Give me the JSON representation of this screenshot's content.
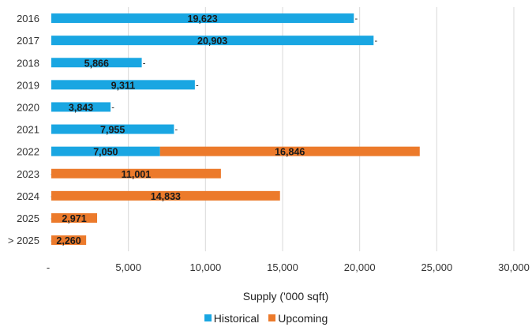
{
  "chart_data": {
    "type": "bar",
    "orientation": "horizontal",
    "stacked": true,
    "categories": [
      "2016",
      "2017",
      "2018",
      "2019",
      "2020",
      "2021",
      "2022",
      "2023",
      "2024",
      "2025",
      "> 2025"
    ],
    "series": [
      {
        "name": "Historical",
        "color": "#19a6e2",
        "values": [
          19623,
          20903,
          5866,
          9311,
          3843,
          7955,
          7050,
          0,
          0,
          0,
          0
        ],
        "labels": [
          "19,623",
          "20,903",
          "5,866",
          "9,311",
          "3,843",
          "7,955",
          "7,050",
          "-",
          "-",
          "-",
          "-"
        ]
      },
      {
        "name": "Upcoming",
        "color": "#ec7a2b",
        "values": [
          0,
          0,
          0,
          0,
          0,
          0,
          16846,
          11001,
          14833,
          2971,
          2260
        ],
        "labels": [
          "-",
          "-",
          "-",
          "-",
          "-",
          "-",
          "16,846",
          "11,001",
          "14,833",
          "2,971",
          "2,260"
        ]
      }
    ],
    "xlim": [
      0,
      30000
    ],
    "xticks": [
      0,
      5000,
      10000,
      15000,
      20000,
      25000,
      30000
    ],
    "xtick_labels": [
      "-",
      "5,000",
      "10,000",
      "15,000",
      "20,000",
      "25,000",
      "30,000"
    ],
    "xlabel": "Supply ('000 sqft)",
    "ylabel": "",
    "grid": "vertical",
    "legend_position": "bottom"
  }
}
